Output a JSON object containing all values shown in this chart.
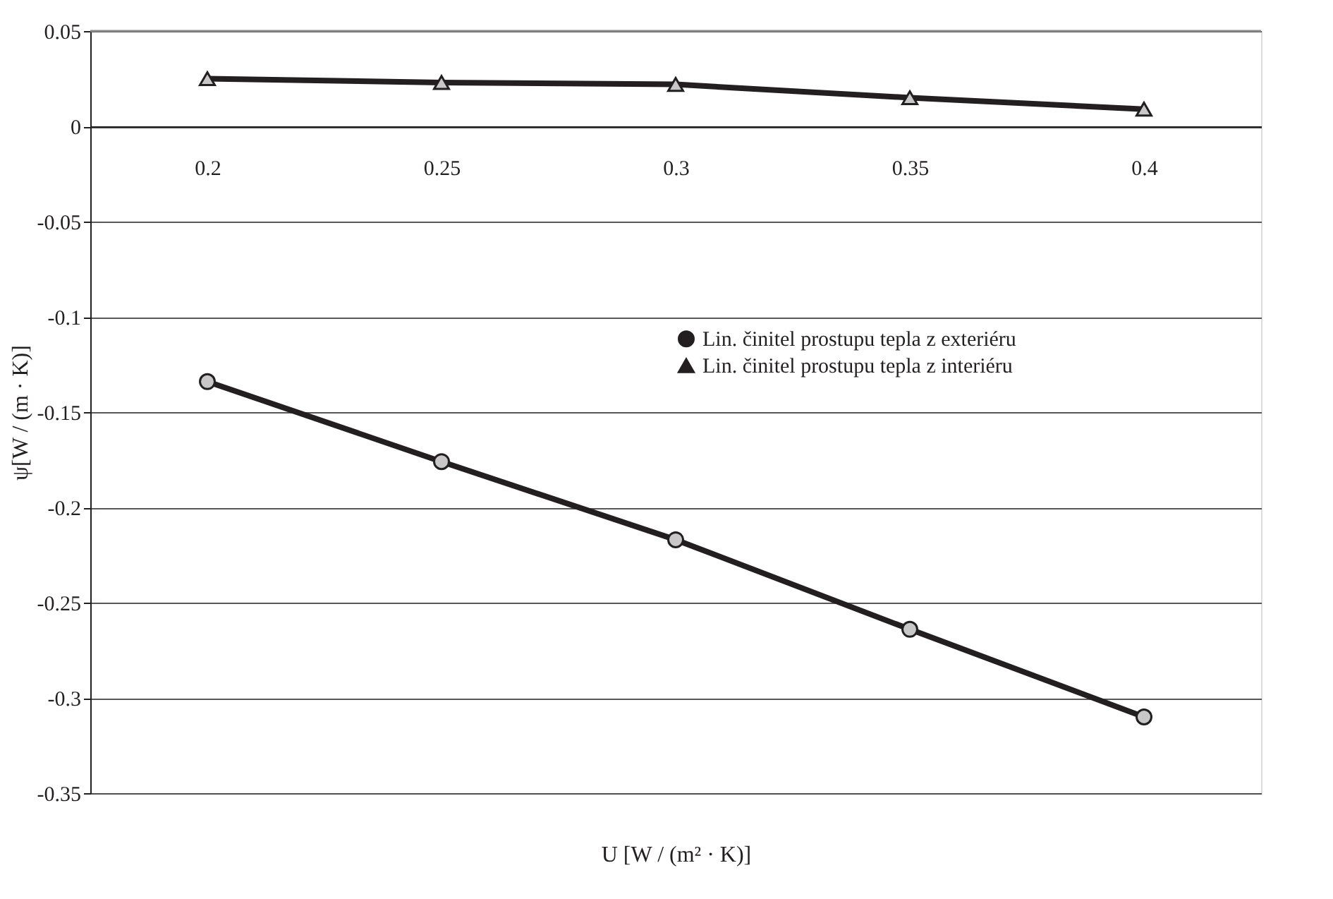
{
  "chart_data": {
    "type": "line",
    "xlabel": "U [W / (m² · K)]",
    "ylabel": "ψ[W / (m · K)]",
    "categories": [
      "0.2",
      "0.25",
      "0.3",
      "0.35",
      "0.4"
    ],
    "series": [
      {
        "name": "Lin. činitel prostupu tepla z exteriéru",
        "color": "#231f20",
        "marker": "circle",
        "values": [
          -0.134,
          -0.176,
          -0.217,
          -0.264,
          -0.31
        ]
      },
      {
        "name": "Lin. činitel prostupu tepla z interiéru",
        "color": "#231f20",
        "marker": "triangle",
        "values": [
          0.025,
          0.023,
          0.022,
          0.015,
          0.009
        ]
      }
    ],
    "ylim": [
      -0.35,
      0.05
    ],
    "yticks": [
      -0.35,
      -0.3,
      -0.25,
      -0.2,
      -0.15,
      -0.1,
      -0.05,
      0,
      0.05
    ],
    "grid": "y",
    "legend": "top right"
  }
}
